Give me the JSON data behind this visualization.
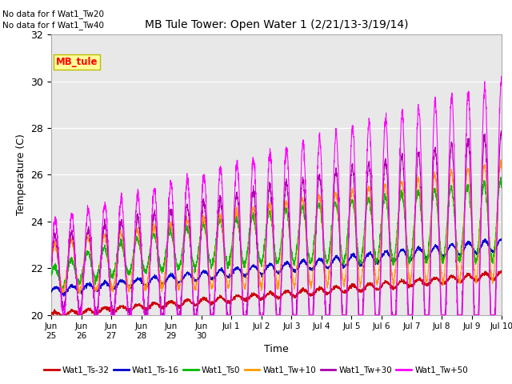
{
  "title": "MB Tule Tower: Open Water 1 (2/21/13-3/19/14)",
  "ylabel": "Temperature (C)",
  "xlabel": "Time",
  "ylim": [
    20,
    32
  ],
  "yticks": [
    20,
    22,
    24,
    26,
    28,
    30,
    32
  ],
  "bg_color": "#e8e8e8",
  "no_data_text": [
    "No data for f Wat1_Tw20",
    "No data for f Wat1_Tw40"
  ],
  "legend_box_label": "MB_tule",
  "legend_lines": [
    {
      "label": "Wat1_Ts-32",
      "color": "#cc0000"
    },
    {
      "label": "Wat1_Ts-16",
      "color": "#0000cc"
    },
    {
      "label": "Wat1_Ts0",
      "color": "#00bb00"
    },
    {
      "label": "Wat1_Tw+10",
      "color": "#ff9900"
    },
    {
      "label": "Wat1_Tw+30",
      "color": "#aa00aa"
    },
    {
      "label": "Wat1_Tw+50",
      "color": "#ff00ff"
    }
  ],
  "tick_positions": [
    0,
    1,
    2,
    3,
    4,
    5,
    6,
    7,
    8,
    9,
    10,
    11,
    12,
    13,
    14,
    15
  ],
  "tick_labels": [
    "Jun\n25",
    "Jun\n26",
    "Jun\n27",
    "Jun\n28",
    "Jun\n29",
    "Jun\n30",
    "Jul 1",
    "Jul 2",
    "Jul 3",
    "Jul 4",
    "Jul 5",
    "Jul 6",
    "Jul 7",
    "Jul 8",
    "Jul 9",
    "Jul 10"
  ]
}
